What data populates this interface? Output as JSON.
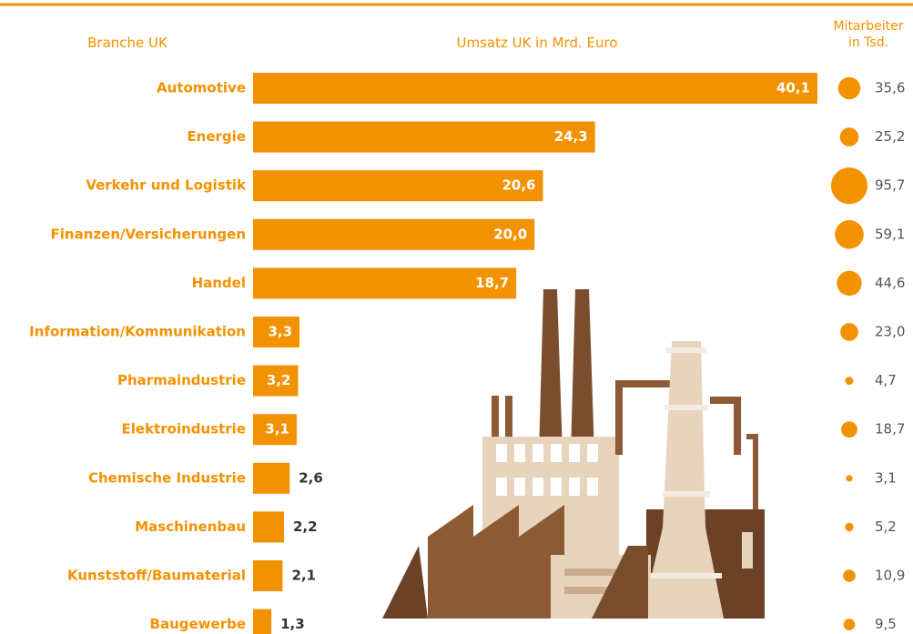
{
  "chart_data": {
    "type": "bar",
    "category_label": "Branche UK",
    "categories": [
      "Automotive",
      "Energie",
      "Verkehr und Logistik",
      "Finanzen/Versicherungen",
      "Handel",
      "Information/Kommunikation",
      "Pharmaindustrie",
      "Elektroindustrie",
      "Chemische Industrie",
      "Maschinenbau",
      "Kunststoff/Baumaterial",
      "Baugewerbe"
    ],
    "series": [
      {
        "name": "Umsatz UK in Mrd. Euro",
        "color": "#f39200",
        "values": [
          40.1,
          24.3,
          20.6,
          20.0,
          18.7,
          3.3,
          3.2,
          3.1,
          2.6,
          2.2,
          2.1,
          1.3
        ],
        "value_labels": [
          "40,1",
          "24,3",
          "20,6",
          "20,0",
          "18,7",
          "3,3",
          "3,2",
          "3,1",
          "2,6",
          "2,2",
          "2,1",
          "1,3"
        ]
      },
      {
        "name": "Mitarbeiter in Tsd.",
        "color": "#f39200",
        "values": [
          35.6,
          25.2,
          95.7,
          59.1,
          44.6,
          23.0,
          4.7,
          18.7,
          3.1,
          5.2,
          10.9,
          9.5
        ],
        "value_labels": [
          "35,6",
          "25,2",
          "95,7",
          "59,1",
          "44,6",
          "23,0",
          "4,7",
          "18,7",
          "3,1",
          "5,2",
          "10,9",
          "9,5"
        ]
      }
    ]
  }
}
